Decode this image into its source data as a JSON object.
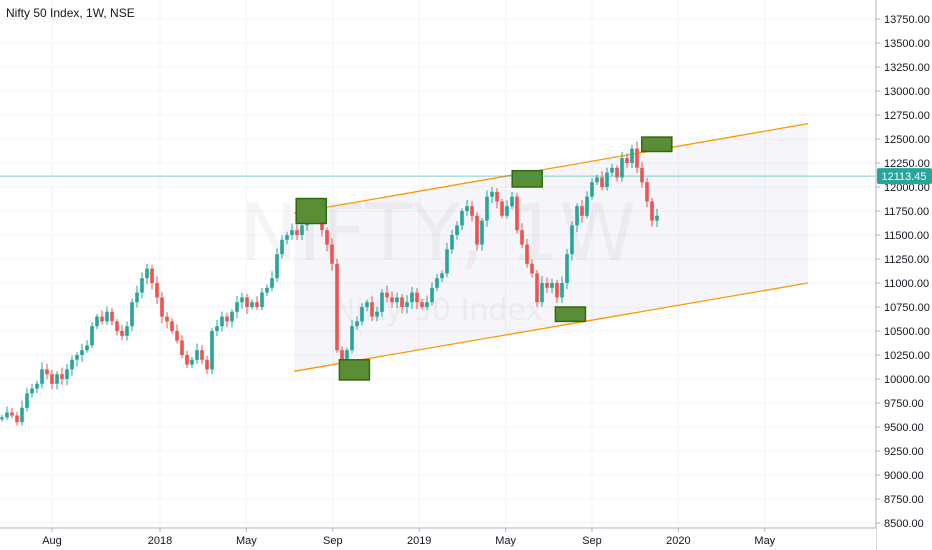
{
  "header": {
    "symbol_label": "Nifty 50 Index, 1W, NSE"
  },
  "watermark": {
    "main": "NIFTY, 1W",
    "sub": "Nifty 50 Index"
  },
  "colors": {
    "up": "#26a69a",
    "down": "#ef5350",
    "channel": "#ff9800",
    "channel_fill": "#9b8dc8",
    "box_fill": "#5b8c36",
    "box_stroke": "#2e6b0c",
    "last_price_line": "#26a69a",
    "grid": "#f0f3fa"
  },
  "chart_data": {
    "type": "candlestick",
    "title": "Nifty 50 Index, 1W, NSE",
    "y_axis": {
      "ticks": [
        "13750.00",
        "13500.00",
        "13250.00",
        "13000.00",
        "12750.00",
        "12500.00",
        "12250.00",
        "12000.00",
        "11750.00",
        "11500.00",
        "11250.00",
        "11000.00",
        "10750.00",
        "10500.00",
        "10250.00",
        "10000.00",
        "9750.00",
        "9500.00",
        "9250.00",
        "9000.00",
        "8750.00",
        "8500.00"
      ],
      "range": [
        8450,
        13900
      ]
    },
    "x_axis": {
      "ticks": [
        {
          "label": "Aug",
          "x": "2017-08"
        },
        {
          "label": "2018",
          "x": "2018-01"
        },
        {
          "label": "May",
          "x": "2018-05"
        },
        {
          "label": "Sep",
          "x": "2018-09"
        },
        {
          "label": "2019",
          "x": "2019-01"
        },
        {
          "label": "May",
          "x": "2019-05"
        },
        {
          "label": "Sep",
          "x": "2019-09"
        },
        {
          "label": "2020",
          "x": "2020-01"
        },
        {
          "label": "May",
          "x": "2020-05"
        }
      ]
    },
    "last_price": 12113.45,
    "last_price_label": "12113.45",
    "weekly_close_approx": [
      9600,
      9650,
      9620,
      9550,
      9700,
      9850,
      9900,
      9950,
      10100,
      10050,
      9950,
      10050,
      10000,
      10100,
      10200,
      10250,
      10300,
      10350,
      10550,
      10650,
      10600,
      10700,
      10600,
      10500,
      10450,
      10550,
      10800,
      10900,
      11050,
      11150,
      11000,
      10850,
      10650,
      10600,
      10500,
      10400,
      10250,
      10150,
      10200,
      10300,
      10200,
      10100,
      10500,
      10550,
      10650,
      10600,
      10700,
      10800,
      10850,
      10750,
      10800,
      10750,
      10900,
      10950,
      11050,
      11300,
      11450,
      11500,
      11550,
      11500,
      11600,
      11750,
      11800,
      11700,
      11550,
      11400,
      11200,
      10300,
      10150,
      10300,
      10550,
      10600,
      10750,
      10800,
      10650,
      10700,
      10900,
      10850,
      10800,
      10850,
      10750,
      10800,
      10900,
      10800,
      10750,
      10800,
      10950,
      11050,
      11100,
      11350,
      11500,
      11600,
      11750,
      11800,
      11700,
      11400,
      11650,
      11900,
      11950,
      11850,
      11700,
      11800,
      11900,
      11550,
      11400,
      11200,
      11100,
      10800,
      11000,
      10950,
      11000,
      10850,
      11000,
      11300,
      11600,
      11800,
      11700,
      11900,
      12050,
      12100,
      12000,
      12150,
      12200,
      12100,
      12300,
      12250,
      12400,
      12200,
      12050,
      11850,
      11650,
      11700
    ],
    "channel": {
      "upper": {
        "start": 11730,
        "end": 12660
      },
      "lower": {
        "start": 10080,
        "end": 11000
      }
    },
    "annotation_boxes": [
      {
        "date": "2018-08",
        "low": 11620,
        "high": 11880
      },
      {
        "date": "2018-10",
        "low": 9990,
        "high": 10200
      },
      {
        "date": "2019-06",
        "low": 12000,
        "high": 12170
      },
      {
        "date": "2019-08",
        "low": 10600,
        "high": 10750
      },
      {
        "date": "2019-12",
        "low": 12370,
        "high": 12520
      }
    ]
  }
}
